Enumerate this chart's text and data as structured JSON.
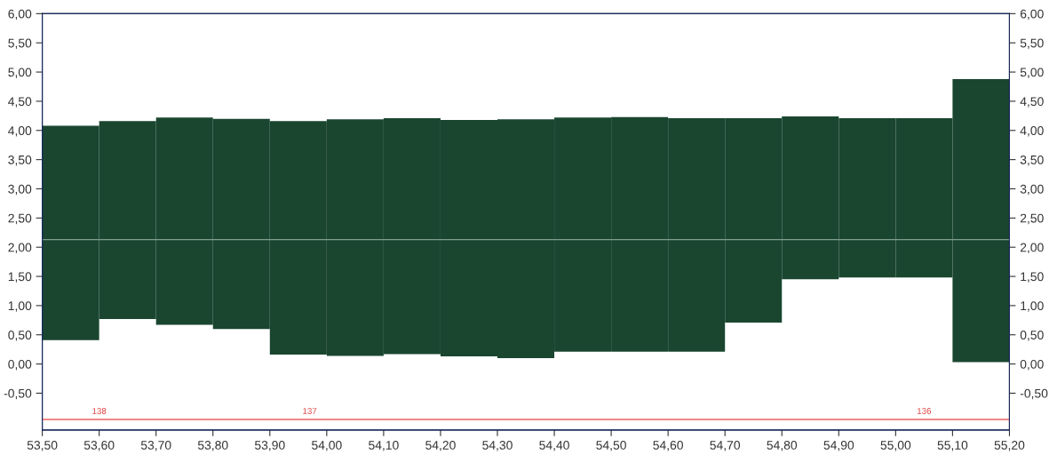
{
  "chart_data": {
    "type": "bar",
    "x": [
      53.55,
      53.65,
      53.75,
      53.85,
      53.95,
      54.05,
      54.15,
      54.25,
      54.35,
      54.45,
      54.55,
      54.65,
      54.75,
      54.85,
      54.95,
      55.05,
      55.15
    ],
    "base": [
      0.41,
      0.77,
      0.67,
      0.6,
      0.16,
      0.14,
      0.17,
      0.13,
      0.1,
      0.21,
      0.21,
      0.21,
      0.71,
      1.45,
      1.48,
      1.48,
      0.03
    ],
    "values": [
      3.67,
      3.39,
      3.55,
      3.6,
      4.0,
      4.05,
      4.04,
      4.05,
      4.09,
      4.01,
      4.02,
      4.0,
      3.5,
      2.79,
      2.73,
      2.73,
      4.85
    ],
    "color": "#1a4630",
    "xlim": [
      53.5,
      55.2
    ],
    "xticks": [
      {
        "value": 53.5,
        "label": "53,50"
      },
      {
        "value": 53.6,
        "label": "53,60"
      },
      {
        "value": 53.7,
        "label": "53,70"
      },
      {
        "value": 53.8,
        "label": "53,80"
      },
      {
        "value": 53.9,
        "label": "53,90"
      },
      {
        "value": 54.0,
        "label": "54,00"
      },
      {
        "value": 54.1,
        "label": "54,10"
      },
      {
        "value": 54.2,
        "label": "54,20"
      },
      {
        "value": 54.3,
        "label": "54,30"
      },
      {
        "value": 54.4,
        "label": "54,40"
      },
      {
        "value": 54.5,
        "label": "54,50"
      },
      {
        "value": 54.6,
        "label": "54,60"
      },
      {
        "value": 54.7,
        "label": "54,70"
      },
      {
        "value": 54.8,
        "label": "54,80"
      },
      {
        "value": 54.9,
        "label": "54,90"
      },
      {
        "value": 55.0,
        "label": "55,00"
      },
      {
        "value": 55.1,
        "label": "55,10"
      },
      {
        "value": 55.2,
        "label": "55,20"
      }
    ],
    "ylim": [
      -1.13,
      6.0
    ],
    "yticks": [
      {
        "value": -0.5,
        "label": "-0,50"
      },
      {
        "value": 0,
        "label": "0,00"
      },
      {
        "value": 0.5,
        "label": "0,50"
      },
      {
        "value": 1.0,
        "label": "1,00"
      },
      {
        "value": 1.5,
        "label": "1,50"
      },
      {
        "value": 2.0,
        "label": "2,00"
      },
      {
        "value": 2.5,
        "label": "2,50"
      },
      {
        "value": 3.0,
        "label": "3,00"
      },
      {
        "value": 3.5,
        "label": "3,50"
      },
      {
        "value": 4.0,
        "label": "4,00"
      },
      {
        "value": 4.5,
        "label": "4,50"
      },
      {
        "value": 5.0,
        "label": "5,00"
      },
      {
        "value": 5.5,
        "label": "5,50"
      },
      {
        "value": 6.0,
        "label": "6,00"
      }
    ],
    "y2lim": [
      -1.13,
      6.0
    ],
    "y2ticks": [
      {
        "value": -0.5,
        "label": "-0,50"
      },
      {
        "value": 0,
        "label": "0,00"
      },
      {
        "value": 0.5,
        "label": "0,50"
      },
      {
        "value": 1.0,
        "label": "1,00"
      },
      {
        "value": 1.5,
        "label": "1,50"
      },
      {
        "value": 2.0,
        "label": "2,00"
      },
      {
        "value": 2.5,
        "label": "2,50"
      },
      {
        "value": 3.0,
        "label": "3,00"
      },
      {
        "value": 3.5,
        "label": "3,50"
      },
      {
        "value": 4.0,
        "label": "4,00"
      },
      {
        "value": 4.5,
        "label": "4,50"
      },
      {
        "value": 5.0,
        "label": "5,00"
      },
      {
        "value": 5.5,
        "label": "5,50"
      },
      {
        "value": 6.0,
        "label": "6,00"
      }
    ],
    "ref_lines": [
      {
        "axis": "y",
        "value": 2.13,
        "color": "#7f9f8c"
      },
      {
        "axis": "y",
        "value": -0.95,
        "color": "#f06060"
      }
    ],
    "annotations": [
      {
        "text": "138",
        "x": 53.6,
        "y": -0.95
      },
      {
        "text": "137",
        "x": 53.97,
        "y": -0.95
      },
      {
        "text": "136",
        "x": 55.05,
        "y": -0.95
      }
    ],
    "grid": false
  }
}
